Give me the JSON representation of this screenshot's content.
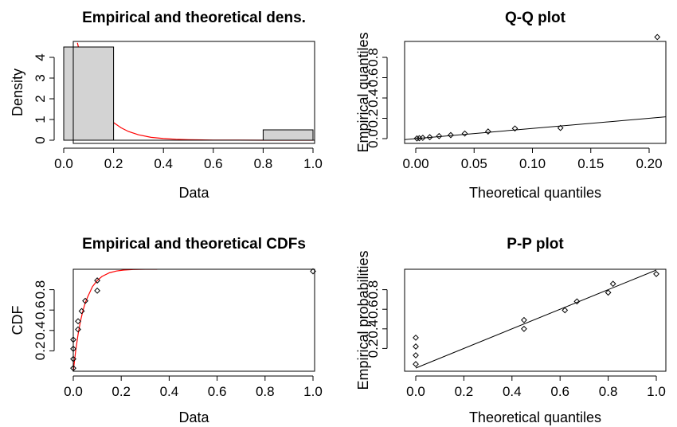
{
  "colors": {
    "theoretical": "#ff0000",
    "hist_fill": "#d3d3d3",
    "points": "#000000"
  },
  "chart_data": [
    {
      "id": "density",
      "type": "bar",
      "title": "Empirical and theoretical dens.",
      "xlabel": "Data",
      "ylabel": "Density",
      "xlim": [
        0,
        1
      ],
      "ylim": [
        0,
        4.5
      ],
      "xticks": [
        "0.0",
        "0.2",
        "0.4",
        "0.6",
        "0.8",
        "1.0"
      ],
      "yticks": [
        "0",
        "1",
        "2",
        "3",
        "4"
      ],
      "bins": [
        {
          "x0": 0.0,
          "x1": 0.2,
          "value": 4.5
        },
        {
          "x0": 0.8,
          "x1": 1.0,
          "value": 0.5
        }
      ],
      "curve": {
        "x": [
          0.055,
          0.07,
          0.09,
          0.11,
          0.13,
          0.15,
          0.17,
          0.2,
          0.23,
          0.26,
          0.3,
          0.35,
          0.4,
          0.45,
          0.5,
          0.6,
          0.7,
          0.8,
          0.9,
          1.0
        ],
        "y": [
          4.7,
          3.95,
          3.1,
          2.45,
          1.93,
          1.52,
          1.2,
          0.85,
          0.6,
          0.42,
          0.26,
          0.14,
          0.08,
          0.045,
          0.025,
          0.008,
          0.003,
          0.001,
          0.0,
          0.0
        ]
      },
      "grid": false
    },
    {
      "id": "qq",
      "type": "scatter",
      "title": "Q-Q plot",
      "xlabel": "Theoretical quantiles",
      "ylabel": "Empirical quantiles",
      "xlim": [
        0,
        0.21
      ],
      "ylim": [
        0,
        1
      ],
      "xticks": [
        "0.00",
        "0.05",
        "0.10",
        "0.15",
        "0.20"
      ],
      "yticks": [
        "0.0",
        "0.2",
        "0.4",
        "0.6",
        "0.8"
      ],
      "x": [
        0.001,
        0.003,
        0.006,
        0.012,
        0.02,
        0.03,
        0.042,
        0.062,
        0.085,
        0.124,
        0.207
      ],
      "y": [
        0.002,
        0.004,
        0.008,
        0.014,
        0.025,
        0.035,
        0.05,
        0.07,
        0.1,
        0.105,
        1.0
      ],
      "reference_line": {
        "x": [
          -0.01,
          0.22
        ],
        "y": [
          -0.01,
          0.22
        ]
      },
      "grid": false
    },
    {
      "id": "cdf",
      "type": "scatter",
      "title": "Empirical and theoretical CDFs",
      "xlabel": "Data",
      "ylabel": "CDF",
      "xlim": [
        0,
        1
      ],
      "ylim": [
        0,
        1
      ],
      "xticks": [
        "0.0",
        "0.2",
        "0.4",
        "0.6",
        "0.8",
        "1.0"
      ],
      "yticks": [
        "0.2",
        "0.4",
        "0.6",
        "0.8"
      ],
      "x": [
        0.0,
        0.0,
        0.0,
        0.0,
        0.02,
        0.02,
        0.035,
        0.05,
        0.1,
        0.1,
        1.0
      ],
      "y": [
        0.03,
        0.12,
        0.22,
        0.31,
        0.41,
        0.49,
        0.59,
        0.69,
        0.79,
        0.89,
        0.98
      ],
      "curve": {
        "x": [
          0,
          0.01,
          0.02,
          0.03,
          0.04,
          0.05,
          0.06,
          0.08,
          0.1,
          0.12,
          0.15,
          0.18,
          0.21,
          0.25,
          0.3,
          0.35
        ],
        "y": [
          0,
          0.2,
          0.36,
          0.49,
          0.59,
          0.67,
          0.73,
          0.83,
          0.89,
          0.93,
          0.965,
          0.983,
          0.992,
          0.998,
          1.0,
          1.0
        ]
      },
      "grid": false
    },
    {
      "id": "pp",
      "type": "scatter",
      "title": "P-P plot",
      "xlabel": "Theoretical quantiles",
      "ylabel": "Empirical probabilities",
      "xlim": [
        0,
        1
      ],
      "ylim": [
        0,
        1
      ],
      "xticks": [
        "0.0",
        "0.2",
        "0.4",
        "0.6",
        "0.8",
        "1.0"
      ],
      "yticks": [
        "0.2",
        "0.4",
        "0.6",
        "0.8"
      ],
      "x": [
        0.0,
        0.0,
        0.0,
        0.0,
        0.45,
        0.45,
        0.62,
        0.67,
        0.8,
        0.82,
        1.0
      ],
      "y": [
        0.04,
        0.13,
        0.22,
        0.31,
        0.4,
        0.49,
        0.59,
        0.68,
        0.77,
        0.86,
        0.96
      ],
      "reference_line": {
        "x": [
          0.0,
          1.0
        ],
        "y": [
          0.0,
          1.0
        ]
      },
      "grid": false
    }
  ]
}
